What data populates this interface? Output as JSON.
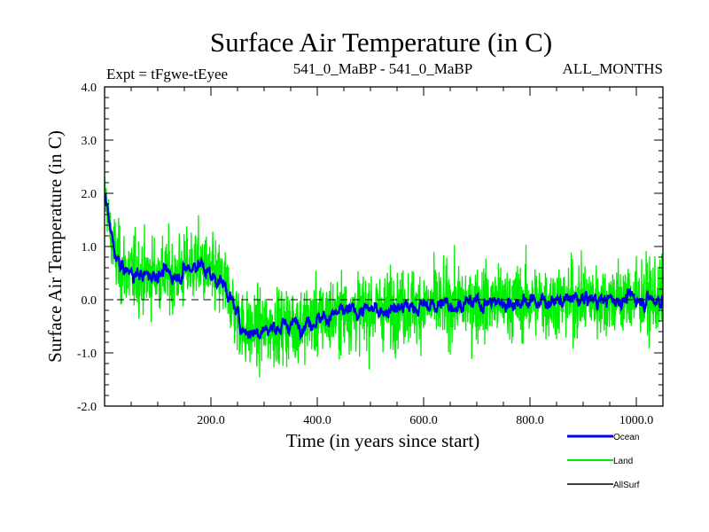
{
  "chart_data": {
    "type": "line",
    "title": "Surface Air Temperature (in C)",
    "subtitle_left": "Expt = tFgwe-tEyee",
    "subtitle_center": "541_0_MaBP - 541_0_MaBP",
    "subtitle_right": "ALL_MONTHS",
    "xlabel": "Time (in years since start)",
    "ylabel": "Surface Air Temperature (in C)",
    "xlim": [
      0,
      1050
    ],
    "ylim": [
      -2.0,
      4.0
    ],
    "x_ticks": [
      200,
      400,
      600,
      800,
      1000
    ],
    "x_tick_labels": [
      "200.0",
      "400.0",
      "600.0",
      "800.0",
      "1000.0"
    ],
    "y_ticks": [
      4.0,
      3.0,
      2.0,
      1.0,
      0.0,
      -1.0,
      -2.0
    ],
    "y_tick_labels": [
      "4.0",
      "3.0",
      "2.0",
      "1.0",
      "0.0",
      "-1.0",
      "-2.0"
    ],
    "reference_line": {
      "y": 0.0,
      "style": "dashed"
    },
    "series": [
      {
        "name": "Ocean",
        "color": "#0000ee",
        "x": [
          0,
          5,
          10,
          20,
          30,
          50,
          75,
          100,
          130,
          160,
          175,
          190,
          200,
          210,
          220,
          230,
          240,
          250,
          260,
          275,
          300,
          330,
          360,
          400,
          450,
          500,
          550,
          600,
          650,
          700,
          750,
          800,
          850,
          900,
          950,
          1000,
          1050
        ],
        "values": [
          2.0,
          1.75,
          1.3,
          0.85,
          0.6,
          0.5,
          0.45,
          0.5,
          0.45,
          0.6,
          0.7,
          0.55,
          0.45,
          0.4,
          0.35,
          0.2,
          -0.05,
          -0.3,
          -0.55,
          -0.6,
          -0.55,
          -0.5,
          -0.45,
          -0.35,
          -0.25,
          -0.2,
          -0.15,
          -0.12,
          -0.08,
          -0.05,
          -0.05,
          -0.03,
          -0.02,
          0.0,
          0.0,
          0.03,
          0.0
        ]
      },
      {
        "name": "Land",
        "color": "#00ee00",
        "x": [
          0,
          5,
          10,
          20,
          30,
          50,
          75,
          100,
          130,
          160,
          175,
          190,
          200,
          210,
          220,
          230,
          240,
          250,
          260,
          275,
          300,
          330,
          360,
          400,
          450,
          500,
          550,
          600,
          650,
          700,
          750,
          800,
          850,
          900,
          950,
          1000,
          1050
        ],
        "values": [
          2.0,
          1.75,
          1.3,
          0.85,
          0.6,
          0.5,
          0.45,
          0.5,
          0.45,
          0.6,
          0.7,
          0.55,
          0.45,
          0.4,
          0.35,
          0.2,
          -0.05,
          -0.3,
          -0.55,
          -0.6,
          -0.55,
          -0.5,
          -0.45,
          -0.35,
          -0.25,
          -0.2,
          -0.15,
          -0.12,
          -0.08,
          -0.05,
          -0.05,
          -0.03,
          -0.02,
          0.0,
          0.0,
          0.03,
          0.0
        ],
        "variability_amplitude": 0.9
      },
      {
        "name": "AllSurf",
        "color": "#000000",
        "values": []
      }
    ],
    "legend": {
      "position": "bottom-right",
      "items": [
        "Ocean",
        "Land",
        "AllSurf"
      ]
    }
  }
}
